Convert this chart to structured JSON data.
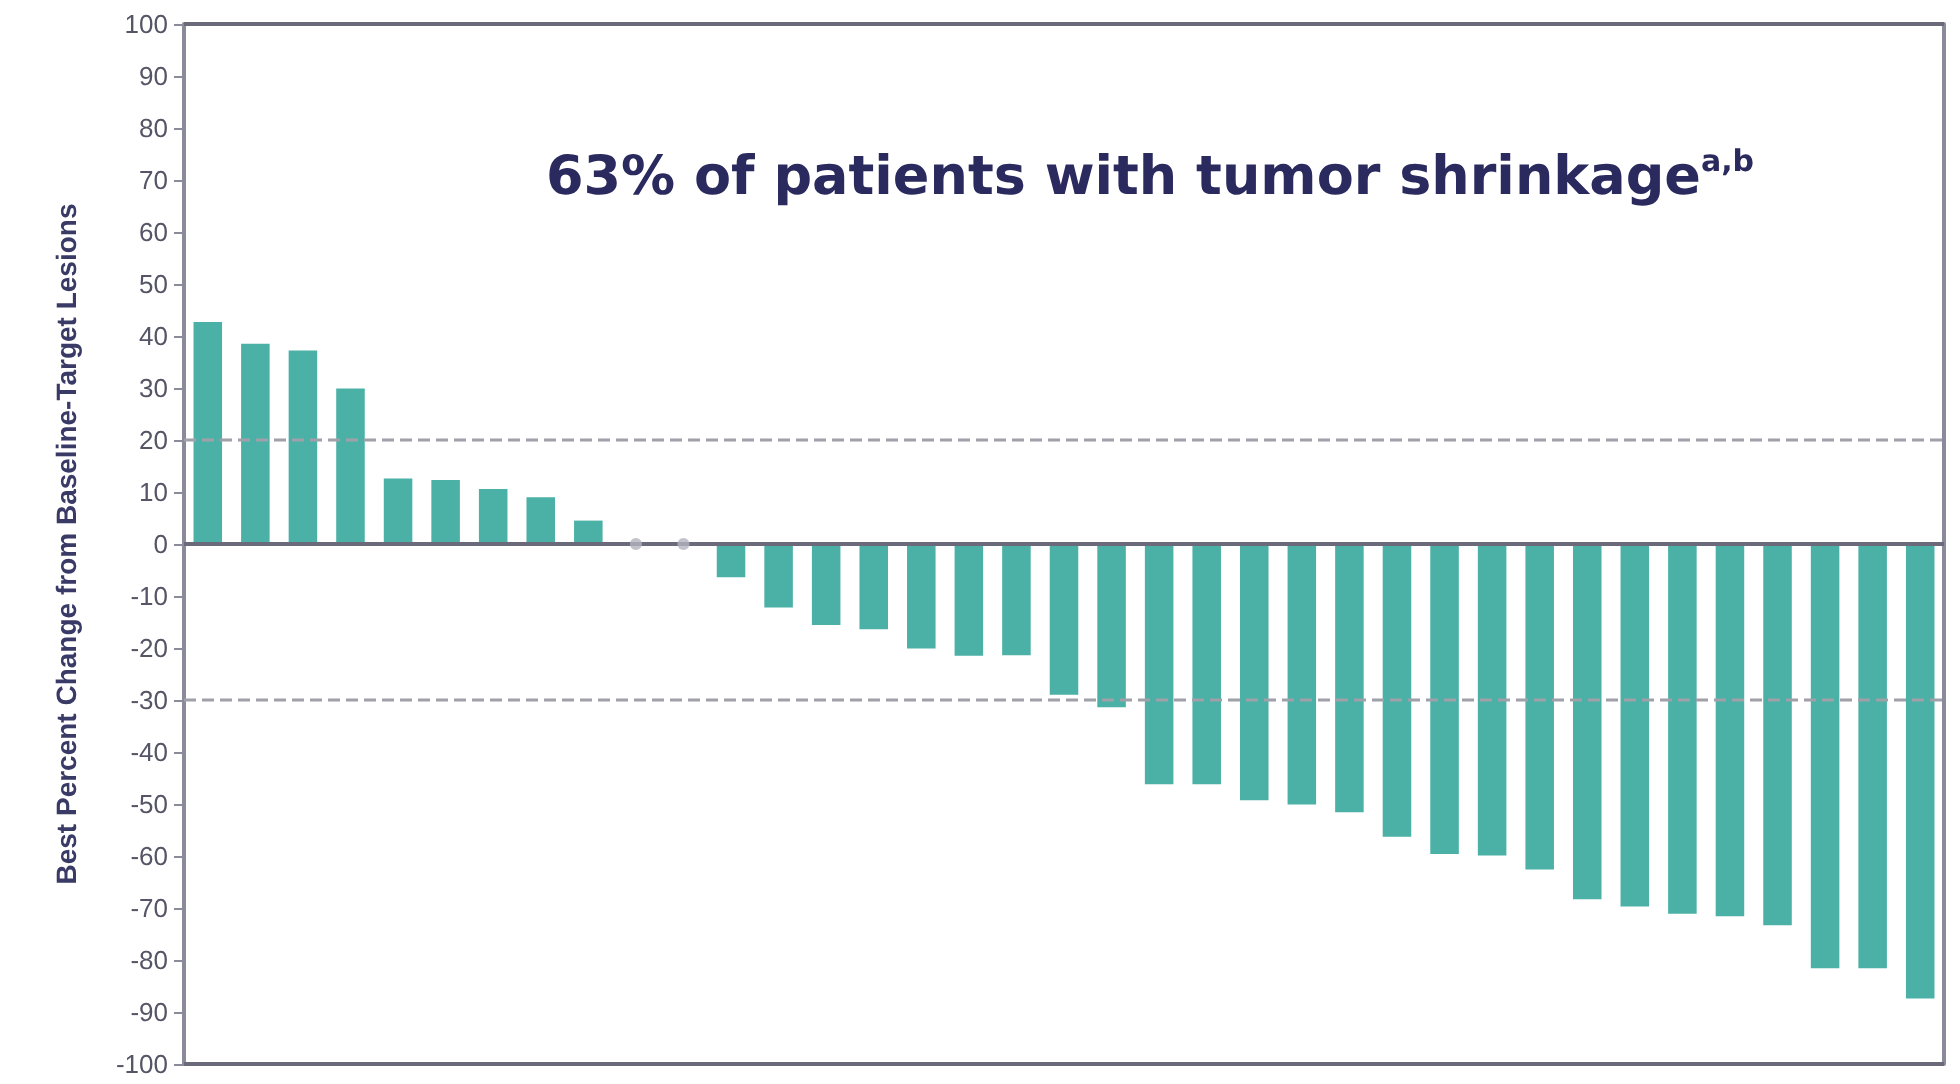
{
  "chart_data": {
    "type": "bar",
    "title": "63% of patients with tumor shrinkage$^{a,b}$",
    "ylabel": "Best Percent Change from Baseline-Target Lesions",
    "categories": [
      null,
      null,
      null,
      null,
      null,
      null,
      null,
      null,
      null,
      null,
      null,
      null,
      null,
      null,
      null,
      null,
      null,
      null,
      null,
      null,
      null,
      null,
      null,
      null,
      null,
      null,
      null,
      null,
      null,
      null,
      null,
      null,
      null,
      null,
      null,
      null,
      null
    ],
    "series": [
      {
        "color": "#4bb1a6",
        "values": [
          42.7,
          38.5,
          37.2,
          29.9,
          12.6,
          12.3,
          10.6,
          9.0,
          4.5,
          null,
          null,
          -6.4,
          -12.2,
          -15.6,
          -16.4,
          -20.1,
          -21.5,
          -21.4,
          -29.0,
          -31.4,
          -46.2,
          -46.2,
          -49.3,
          -50.1,
          -51.6,
          -56.3,
          -59.6,
          -59.9,
          -62.6,
          -68.3,
          -69.7,
          -71.1,
          -71.6,
          -73.3,
          -81.6,
          -81.6,
          -87.4
        ]
      },
      {
        "type": "scatter",
        "color": "#b4b4c0",
        "values": [
          null,
          null,
          null,
          null,
          null,
          null,
          null,
          null,
          null,
          0,
          0,
          null,
          null,
          null,
          null,
          null,
          null,
          null,
          null,
          null,
          null,
          null,
          null,
          null,
          null,
          null,
          null,
          null,
          null,
          null,
          null,
          null,
          null,
          null,
          null,
          null,
          null
        ]
      }
    ],
    "ylim": [
      -100,
      100
    ],
    "yticks": [
      -100,
      -90,
      -80,
      -70,
      -60,
      -50,
      -40,
      -30,
      -20,
      -10,
      0,
      10,
      20,
      30,
      40,
      50,
      60,
      70,
      80,
      90,
      100
    ],
    "ref_lines": [
      {
        "axis": "y",
        "value": 20,
        "color": "#a0a0a8",
        "line_style": "dashed"
      },
      {
        "axis": "y",
        "value": -30,
        "color": "#a0a0a8",
        "line_style": "dashed"
      }
    ],
    "grid": false,
    "marker": "circle"
  }
}
